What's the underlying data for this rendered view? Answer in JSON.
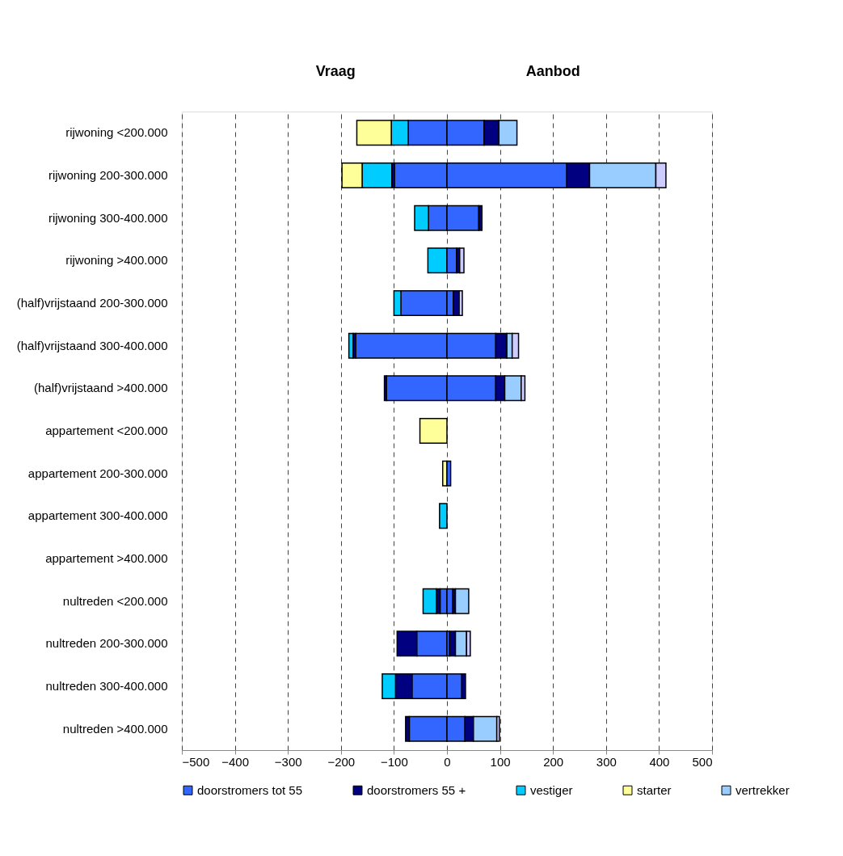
{
  "chart_data": {
    "type": "bar",
    "orientation": "horizontal",
    "stacked": true,
    "annotations": [
      "Vraag",
      "Aanbod"
    ],
    "categories": [
      "rijwoning <200.000",
      "rijwoning 200-300.000",
      "rijwoning 300-400.000",
      "rijwoning >400.000",
      "(half)vrijstaand 200-300.000",
      "(half)vrijstaand 300-400.000",
      "(half)vrijstaand >400.000",
      "appartement <200.000",
      "appartement 200-300.000",
      "appartement 300-400.000",
      "appartement >400.000",
      "nultreden <200.000",
      "nultreden 200-300.000",
      "nultreden 300-400.000",
      "nultreden >400.000"
    ],
    "series": [
      {
        "name": "doorstromers tot 55",
        "color": "#3366ff",
        "values": [
          -73,
          -99,
          -35,
          null,
          -87,
          -172,
          -114,
          null,
          null,
          null,
          null,
          -13,
          -57,
          -66,
          -71
        ]
      },
      {
        "name": "doorstromers 55 +",
        "color": "#000080",
        "values": [
          null,
          -5,
          null,
          null,
          null,
          -5,
          -4,
          null,
          null,
          null,
          null,
          -7,
          -37,
          -31,
          -7
        ]
      },
      {
        "name": "vestiger",
        "color": "#00ccff",
        "values": [
          -32,
          -56,
          -26,
          -36,
          -13,
          -8,
          null,
          null,
          null,
          -14,
          null,
          -25,
          null,
          -25,
          null
        ]
      },
      {
        "name": "starter",
        "color": "#ffff99",
        "values": [
          -65,
          -38,
          null,
          null,
          null,
          null,
          null,
          -51,
          -8,
          null,
          null,
          null,
          null,
          null,
          null
        ]
      },
      {
        "color": "#3366ff",
        "values": [
          70,
          226,
          60,
          18,
          12,
          92,
          92,
          null,
          7,
          null,
          null,
          11,
          5,
          28,
          34
        ]
      },
      {
        "color": "#000080",
        "values": [
          28,
          43,
          6,
          6,
          11,
          21,
          17,
          null,
          null,
          null,
          null,
          5,
          11,
          7,
          16
        ]
      },
      {
        "name": "vertrekker",
        "color": "#99ccff",
        "values": [
          34,
          125,
          null,
          null,
          null,
          10,
          31,
          null,
          null,
          null,
          null,
          25,
          21,
          null,
          44
        ]
      },
      {
        "color": "#ccccff",
        "values": [
          null,
          19,
          null,
          8,
          6,
          12,
          7,
          null,
          null,
          null,
          null,
          null,
          7,
          null,
          5
        ]
      }
    ],
    "xlim": [
      -500,
      500
    ],
    "xticks": [
      -500,
      -400,
      -300,
      -200,
      -100,
      0,
      100,
      200,
      300,
      400,
      500
    ],
    "grid": "x",
    "legend": "bottom"
  }
}
